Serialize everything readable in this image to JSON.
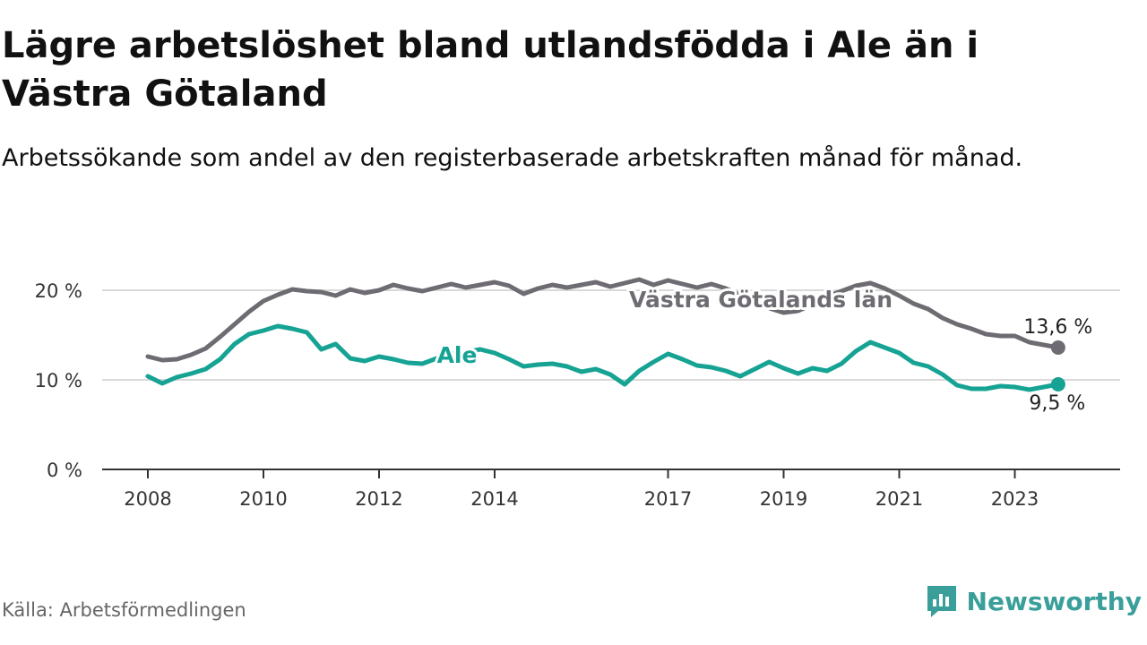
{
  "header": {
    "title": "Lägre arbetslöshet bland utlandsfödda i Ale än i Västra Götaland",
    "subtitle": "Arbetssökande som andel av den registerbaserade arbetskraften månad för månad."
  },
  "footer": {
    "source": "Källa: Arbetsförmedlingen",
    "brand": "Newsworthy"
  },
  "colors": {
    "ale": "#16a394",
    "vastra": "#6e6c72",
    "grid": "#d9d9d9",
    "axis": "#333333"
  },
  "chart_data": {
    "type": "line",
    "title": "Lägre arbetslöshet bland utlandsfödda i Ale än i Västra Götaland",
    "ylim": [
      0,
      20
    ],
    "xlim": [
      2008,
      2024
    ],
    "y_ticks": [
      {
        "value": 0,
        "label": "0 %"
      },
      {
        "value": 10,
        "label": "10 %"
      },
      {
        "value": 20,
        "label": "20 %"
      }
    ],
    "x_ticks": [
      {
        "value": 2008,
        "label": "2008"
      },
      {
        "value": 2010,
        "label": "2010"
      },
      {
        "value": 2012,
        "label": "2012"
      },
      {
        "value": 2014,
        "label": "2014"
      },
      {
        "value": 2017,
        "label": "2017"
      },
      {
        "value": 2019,
        "label": "2019"
      },
      {
        "value": 2021,
        "label": "2021"
      },
      {
        "value": 2023,
        "label": "2023"
      }
    ],
    "series": [
      {
        "name": "Västra Götalands län",
        "color": "#6e6c72",
        "end_label": "13,6 %",
        "points": [
          [
            2008.0,
            12.6
          ],
          [
            2008.25,
            12.2
          ],
          [
            2008.5,
            12.3
          ],
          [
            2008.75,
            12.8
          ],
          [
            2009.0,
            13.5
          ],
          [
            2009.25,
            14.8
          ],
          [
            2009.5,
            16.2
          ],
          [
            2009.75,
            17.6
          ],
          [
            2010.0,
            18.8
          ],
          [
            2010.25,
            19.5
          ],
          [
            2010.5,
            20.1
          ],
          [
            2010.75,
            19.9
          ],
          [
            2011.0,
            19.8
          ],
          [
            2011.25,
            19.4
          ],
          [
            2011.5,
            20.1
          ],
          [
            2011.75,
            19.7
          ],
          [
            2012.0,
            20.0
          ],
          [
            2012.25,
            20.6
          ],
          [
            2012.5,
            20.2
          ],
          [
            2012.75,
            19.9
          ],
          [
            2013.0,
            20.3
          ],
          [
            2013.25,
            20.7
          ],
          [
            2013.5,
            20.3
          ],
          [
            2013.75,
            20.6
          ],
          [
            2014.0,
            20.9
          ],
          [
            2014.25,
            20.5
          ],
          [
            2014.5,
            19.6
          ],
          [
            2014.75,
            20.2
          ],
          [
            2015.0,
            20.6
          ],
          [
            2015.25,
            20.3
          ],
          [
            2015.5,
            20.6
          ],
          [
            2015.75,
            20.9
          ],
          [
            2016.0,
            20.4
          ],
          [
            2016.25,
            20.8
          ],
          [
            2016.5,
            21.2
          ],
          [
            2016.75,
            20.6
          ],
          [
            2017.0,
            21.1
          ],
          [
            2017.25,
            20.7
          ],
          [
            2017.5,
            20.3
          ],
          [
            2017.75,
            20.7
          ],
          [
            2018.0,
            20.2
          ],
          [
            2018.25,
            19.5
          ],
          [
            2018.5,
            18.8
          ],
          [
            2018.75,
            18.0
          ],
          [
            2019.0,
            17.5
          ],
          [
            2019.25,
            17.7
          ],
          [
            2019.5,
            18.4
          ],
          [
            2019.75,
            19.3
          ],
          [
            2020.0,
            19.9
          ],
          [
            2020.25,
            20.5
          ],
          [
            2020.5,
            20.8
          ],
          [
            2020.75,
            20.2
          ],
          [
            2021.0,
            19.4
          ],
          [
            2021.25,
            18.5
          ],
          [
            2021.5,
            17.9
          ],
          [
            2021.75,
            16.9
          ],
          [
            2022.0,
            16.2
          ],
          [
            2022.25,
            15.7
          ],
          [
            2022.5,
            15.1
          ],
          [
            2022.75,
            14.9
          ],
          [
            2023.0,
            14.9
          ],
          [
            2023.25,
            14.2
          ],
          [
            2023.5,
            13.9
          ],
          [
            2023.75,
            13.6
          ]
        ]
      },
      {
        "name": "Ale",
        "color": "#16a394",
        "end_label": "9,5 %",
        "points": [
          [
            2008.0,
            10.4
          ],
          [
            2008.25,
            9.6
          ],
          [
            2008.5,
            10.3
          ],
          [
            2008.75,
            10.7
          ],
          [
            2009.0,
            11.2
          ],
          [
            2009.25,
            12.3
          ],
          [
            2009.5,
            14.0
          ],
          [
            2009.75,
            15.1
          ],
          [
            2010.0,
            15.5
          ],
          [
            2010.25,
            16.0
          ],
          [
            2010.5,
            15.7
          ],
          [
            2010.75,
            15.3
          ],
          [
            2011.0,
            13.4
          ],
          [
            2011.25,
            14.0
          ],
          [
            2011.5,
            12.4
          ],
          [
            2011.75,
            12.1
          ],
          [
            2012.0,
            12.6
          ],
          [
            2012.25,
            12.3
          ],
          [
            2012.5,
            11.9
          ],
          [
            2012.75,
            11.8
          ],
          [
            2013.0,
            12.4
          ],
          [
            2013.25,
            12.9
          ],
          [
            2013.5,
            13.1
          ],
          [
            2013.75,
            13.4
          ],
          [
            2014.0,
            13.0
          ],
          [
            2014.25,
            12.3
          ],
          [
            2014.5,
            11.5
          ],
          [
            2014.75,
            11.7
          ],
          [
            2015.0,
            11.8
          ],
          [
            2015.25,
            11.5
          ],
          [
            2015.5,
            10.9
          ],
          [
            2015.75,
            11.2
          ],
          [
            2016.0,
            10.6
          ],
          [
            2016.25,
            9.5
          ],
          [
            2016.5,
            11.0
          ],
          [
            2016.75,
            12.0
          ],
          [
            2017.0,
            12.9
          ],
          [
            2017.25,
            12.3
          ],
          [
            2017.5,
            11.6
          ],
          [
            2017.75,
            11.4
          ],
          [
            2018.0,
            11.0
          ],
          [
            2018.25,
            10.4
          ],
          [
            2018.5,
            11.2
          ],
          [
            2018.75,
            12.0
          ],
          [
            2019.0,
            11.3
          ],
          [
            2019.25,
            10.7
          ],
          [
            2019.5,
            11.3
          ],
          [
            2019.75,
            11.0
          ],
          [
            2020.0,
            11.8
          ],
          [
            2020.25,
            13.2
          ],
          [
            2020.5,
            14.2
          ],
          [
            2020.75,
            13.6
          ],
          [
            2021.0,
            13.0
          ],
          [
            2021.25,
            11.9
          ],
          [
            2021.5,
            11.5
          ],
          [
            2021.75,
            10.6
          ],
          [
            2022.0,
            9.4
          ],
          [
            2022.25,
            9.0
          ],
          [
            2022.5,
            9.0
          ],
          [
            2022.75,
            9.3
          ],
          [
            2023.0,
            9.2
          ],
          [
            2023.25,
            8.9
          ],
          [
            2023.5,
            9.2
          ],
          [
            2023.75,
            9.5
          ]
        ]
      }
    ]
  }
}
